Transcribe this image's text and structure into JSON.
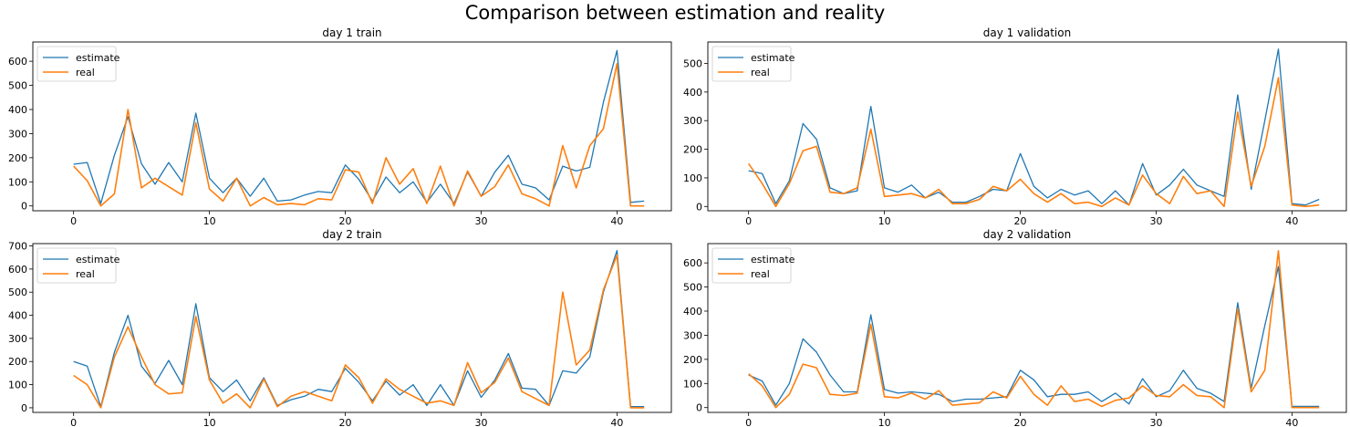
{
  "figure_title": "Comparison between estimation and reality",
  "legend_labels": [
    "estimate",
    "real"
  ],
  "colors": {
    "estimate": "#1f77b4",
    "real": "#ff7f0e"
  },
  "chart_data": [
    {
      "type": "line",
      "title": "day 1 train",
      "xlabel": "",
      "ylabel": "",
      "xlim": [
        -3,
        44
      ],
      "ylim": [
        -20,
        680
      ],
      "xticks": [
        0,
        10,
        20,
        30,
        40
      ],
      "yticks": [
        0,
        100,
        200,
        300,
        400,
        500,
        600
      ],
      "legend": "top-left",
      "grid": false,
      "x": [
        0,
        1,
        2,
        3,
        4,
        5,
        6,
        7,
        8,
        9,
        10,
        11,
        12,
        13,
        14,
        15,
        16,
        17,
        18,
        19,
        20,
        21,
        22,
        23,
        24,
        25,
        26,
        27,
        28,
        29,
        30,
        31,
        32,
        33,
        34,
        35,
        36,
        37,
        38,
        39,
        40,
        41,
        42
      ],
      "series": [
        {
          "name": "estimate",
          "values": [
            173,
            180,
            10,
            210,
            370,
            175,
            90,
            180,
            100,
            385,
            115,
            55,
            115,
            40,
            115,
            20,
            25,
            45,
            60,
            55,
            170,
            110,
            20,
            120,
            55,
            100,
            15,
            90,
            10,
            140,
            40,
            140,
            210,
            90,
            75,
            25,
            165,
            145,
            160,
            430,
            645,
            15,
            20
          ]
        },
        {
          "name": "real",
          "values": [
            165,
            105,
            0,
            50,
            400,
            75,
            115,
            80,
            45,
            345,
            70,
            20,
            115,
            0,
            35,
            5,
            10,
            5,
            30,
            25,
            150,
            140,
            10,
            200,
            90,
            155,
            10,
            165,
            0,
            145,
            40,
            80,
            170,
            50,
            30,
            0,
            250,
            75,
            250,
            320,
            590,
            0,
            0
          ]
        }
      ]
    },
    {
      "type": "line",
      "title": "day 1 validation",
      "xlabel": "",
      "ylabel": "",
      "xlim": [
        -3,
        44
      ],
      "ylim": [
        -15,
        575
      ],
      "xticks": [
        0,
        10,
        20,
        30,
        40
      ],
      "yticks": [
        0,
        100,
        200,
        300,
        400,
        500
      ],
      "legend": "top-left",
      "grid": false,
      "x": [
        0,
        1,
        2,
        3,
        4,
        5,
        6,
        7,
        8,
        9,
        10,
        11,
        12,
        13,
        14,
        15,
        16,
        17,
        18,
        19,
        20,
        21,
        22,
        23,
        24,
        25,
        26,
        27,
        28,
        29,
        30,
        31,
        32,
        33,
        34,
        35,
        36,
        37,
        38,
        39,
        40,
        41,
        42
      ],
      "series": [
        {
          "name": "estimate",
          "values": [
            125,
            115,
            10,
            90,
            290,
            235,
            65,
            45,
            55,
            350,
            65,
            50,
            75,
            30,
            50,
            15,
            15,
            35,
            60,
            55,
            185,
            70,
            30,
            60,
            40,
            55,
            10,
            55,
            5,
            150,
            40,
            75,
            130,
            75,
            55,
            35,
            390,
            60,
            300,
            550,
            10,
            5,
            25
          ]
        },
        {
          "name": "real",
          "values": [
            150,
            80,
            0,
            80,
            195,
            210,
            50,
            45,
            65,
            270,
            35,
            40,
            45,
            30,
            60,
            10,
            10,
            25,
            70,
            55,
            95,
            45,
            15,
            45,
            10,
            15,
            0,
            30,
            5,
            110,
            45,
            10,
            105,
            45,
            55,
            0,
            330,
            70,
            210,
            450,
            5,
            0,
            5
          ]
        }
      ]
    },
    {
      "type": "line",
      "title": "day 2 train",
      "xlabel": "",
      "ylabel": "",
      "xlim": [
        -3,
        44
      ],
      "ylim": [
        -20,
        710
      ],
      "xticks": [
        0,
        10,
        20,
        30,
        40
      ],
      "yticks": [
        0,
        100,
        200,
        300,
        400,
        500,
        600,
        700
      ],
      "legend": "top-left",
      "grid": false,
      "x": [
        0,
        1,
        2,
        3,
        4,
        5,
        6,
        7,
        8,
        9,
        10,
        11,
        12,
        13,
        14,
        15,
        16,
        17,
        18,
        19,
        20,
        21,
        22,
        23,
        24,
        25,
        26,
        27,
        28,
        29,
        30,
        31,
        32,
        33,
        34,
        35,
        36,
        37,
        38,
        39,
        40,
        41,
        42
      ],
      "series": [
        {
          "name": "estimate",
          "values": [
            200,
            180,
            5,
            240,
            400,
            180,
            105,
            205,
            100,
            450,
            130,
            70,
            120,
            30,
            130,
            10,
            35,
            50,
            80,
            70,
            170,
            110,
            30,
            115,
            55,
            100,
            10,
            100,
            10,
            160,
            45,
            120,
            235,
            85,
            80,
            10,
            160,
            150,
            220,
            500,
            680,
            5,
            5
          ]
        },
        {
          "name": "real",
          "values": [
            140,
            100,
            0,
            220,
            350,
            220,
            100,
            60,
            65,
            395,
            120,
            20,
            60,
            0,
            125,
            5,
            50,
            70,
            50,
            30,
            185,
            130,
            20,
            125,
            80,
            50,
            20,
            30,
            10,
            195,
            65,
            110,
            215,
            70,
            40,
            10,
            500,
            185,
            250,
            510,
            660,
            0,
            0
          ]
        }
      ]
    },
    {
      "type": "line",
      "title": "day 2 validation",
      "xlabel": "",
      "ylabel": "",
      "xlim": [
        -3,
        44
      ],
      "ylim": [
        -20,
        680
      ],
      "xticks": [
        0,
        10,
        20,
        30,
        40
      ],
      "yticks": [
        0,
        100,
        200,
        300,
        400,
        500,
        600
      ],
      "legend": "top-left",
      "grid": false,
      "x": [
        0,
        1,
        2,
        3,
        4,
        5,
        6,
        7,
        8,
        9,
        10,
        11,
        12,
        13,
        14,
        15,
        16,
        17,
        18,
        19,
        20,
        21,
        22,
        23,
        24,
        25,
        26,
        27,
        28,
        29,
        30,
        31,
        32,
        33,
        34,
        35,
        36,
        37,
        38,
        39,
        40,
        41,
        42
      ],
      "series": [
        {
          "name": "estimate",
          "values": [
            135,
            110,
            10,
            100,
            285,
            230,
            135,
            65,
            65,
            385,
            75,
            60,
            65,
            60,
            55,
            25,
            35,
            35,
            40,
            45,
            155,
            115,
            45,
            55,
            55,
            65,
            25,
            60,
            15,
            120,
            45,
            70,
            155,
            80,
            60,
            25,
            435,
            80,
            340,
            585,
            5,
            5,
            5
          ]
        },
        {
          "name": "real",
          "values": [
            140,
            90,
            0,
            55,
            180,
            165,
            55,
            50,
            60,
            345,
            45,
            40,
            60,
            35,
            70,
            10,
            15,
            20,
            65,
            40,
            130,
            55,
            10,
            90,
            25,
            35,
            5,
            30,
            40,
            90,
            50,
            45,
            95,
            50,
            45,
            0,
            410,
            65,
            155,
            650,
            0,
            0,
            0
          ]
        }
      ]
    }
  ]
}
